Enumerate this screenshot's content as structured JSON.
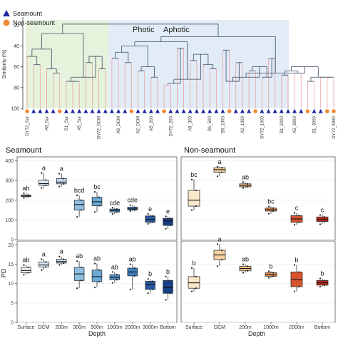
{
  "colors": {
    "seamount": "#1f2aa0",
    "nonseamount": "#f08a36",
    "photic_bg": "#e6f2dc",
    "aphotic_bg": "#e2ecf7",
    "tree_line": "#3b4a63",
    "leaf_line": "#e9a0a0",
    "seamount_fills": [
      "#eef5fb",
      "#dbe9f6",
      "#c2daef",
      "#8fbfe3",
      "#6aaad8",
      "#4f91c9",
      "#3c7cbd",
      "#2458a0",
      "#173f86"
    ],
    "nonseamount_fills": [
      "#fbe7c9",
      "#f7d3a1",
      "#f3c08a",
      "#e98c4b",
      "#d8542d",
      "#bb2b1f"
    ]
  },
  "chart_data": [
    {
      "type": "dendrogram",
      "legend": [
        "Seamount",
        "Non-seamount"
      ],
      "legend_position": "top-left",
      "regions": [
        "Photic",
        "Aphotic"
      ],
      "ylabel": "Similarity (%)",
      "yticks": [
        20,
        40,
        60,
        80,
        100
      ],
      "ylim": [
        100,
        15
      ],
      "leaf_labels": [
        "DY72_Sur",
        "A8_Sur",
        "B1_Sur",
        "A5_Sur",
        "DY72_DCM",
        "A8_DCM",
        "A2_DCM",
        "A5_200",
        "DY72_200",
        "A8_300",
        "B1_500",
        "B8_1000",
        "A2_1000",
        "DY72_1000",
        "B1_2000",
        "A5_3000",
        "B1_3000",
        "DY72_4980"
      ],
      "leaf_types": [
        "Non-seamount",
        "Seamount",
        "Seamount",
        "Seamount",
        "Seamount",
        "Non-seamount",
        "Seamount",
        "Seamount",
        "Seamount",
        "Seamount",
        "Seamount",
        "Seamount",
        "Seamount",
        "Seamount",
        "Seamount",
        "Seamount",
        "Non-seamount",
        "Seamount",
        "Seamount",
        "Seamount",
        "Seamount",
        "Non-seamount",
        "Seamount",
        "Seamount",
        "Seamount",
        "Seamount",
        "Seamount",
        "Seamount",
        "Seamount",
        "Seamount",
        "Seamount",
        "Non-seamount",
        "Seamount",
        "Seamount",
        "Seamount",
        "Non-seamount",
        "Seamount",
        "Seamount",
        "Seamount",
        "Seamount",
        "Seamount",
        "Seamount",
        "Seamount",
        "Non-seamount",
        "Seamount",
        "Seamount",
        "Non-seamount",
        "Non-seamount"
      ],
      "merge_heights_photic": [
        28,
        43,
        50,
        58,
        62,
        66,
        70,
        74,
        74,
        50,
        56,
        62,
        66,
        70
      ],
      "merge_heights_aphotic": [
        31,
        36,
        40,
        46,
        52,
        56,
        60,
        64,
        70,
        72,
        76,
        78,
        42,
        48,
        54,
        58,
        62,
        66,
        70,
        74,
        44,
        56,
        60,
        64,
        70,
        52,
        60,
        64,
        68,
        66,
        70,
        74
      ],
      "photic_aphotic_merge": 19
    },
    {
      "type": "box",
      "title": "Seamount",
      "ylim": [
        0,
        420
      ],
      "yticks": [
        0,
        100,
        200,
        300,
        400
      ],
      "categories": [
        "Surface",
        "DCM",
        "200m",
        "300m",
        "500m",
        "1000m",
        "2000m",
        "3000m",
        "Bottom"
      ],
      "letters": [
        "ab",
        "a",
        "a",
        "bcd",
        "bc",
        "cde",
        "cde",
        "e",
        "e"
      ],
      "boxes": [
        {
          "min": 212,
          "q1": 218,
          "median": 222,
          "q3": 226,
          "max": 235
        },
        {
          "min": 262,
          "q1": 275,
          "median": 284,
          "q3": 302,
          "max": 338
        },
        {
          "min": 270,
          "q1": 283,
          "median": 292,
          "q3": 310,
          "max": 335
        },
        {
          "min": 115,
          "q1": 150,
          "median": 178,
          "q3": 200,
          "max": 225
        },
        {
          "min": 140,
          "q1": 172,
          "median": 192,
          "q3": 215,
          "max": 242
        },
        {
          "min": 130,
          "q1": 140,
          "median": 148,
          "q3": 155,
          "max": 162
        },
        {
          "min": 145,
          "q1": 150,
          "median": 156,
          "q3": 165,
          "max": 175
        },
        {
          "min": 80,
          "q1": 88,
          "median": 102,
          "q3": 120,
          "max": 130
        },
        {
          "min": 55,
          "q1": 72,
          "median": 95,
          "q3": 108,
          "max": 118
        }
      ]
    },
    {
      "type": "box",
      "title": "Non-seamount",
      "ylim": [
        0,
        420
      ],
      "yticks": [
        0,
        100,
        200,
        300,
        400
      ],
      "categories": [
        "Surface",
        "DCM",
        "200m",
        "1000m",
        "2000m",
        "Bottom"
      ],
      "letters": [
        "bc",
        "a",
        "ab",
        "bc",
        "c",
        "c"
      ],
      "boxes": [
        {
          "min": 150,
          "q1": 170,
          "median": 200,
          "q3": 250,
          "max": 305
        },
        {
          "min": 322,
          "q1": 342,
          "median": 355,
          "q3": 365,
          "max": 370
        },
        {
          "min": 262,
          "q1": 268,
          "median": 275,
          "q3": 283,
          "max": 292
        },
        {
          "min": 132,
          "q1": 145,
          "median": 152,
          "q3": 160,
          "max": 168
        },
        {
          "min": 75,
          "q1": 88,
          "median": 105,
          "q3": 122,
          "max": 135
        },
        {
          "min": 78,
          "q1": 92,
          "median": 102,
          "q3": 115,
          "max": 125
        }
      ]
    },
    {
      "type": "box",
      "ylabel": "PD",
      "ylim": [
        0,
        21
      ],
      "yticks": [
        0,
        5,
        10,
        15,
        20
      ],
      "categories": [
        "Surface",
        "DCM",
        "200m",
        "300m",
        "500m",
        "1000m",
        "2000m",
        "3000m",
        "Bottom"
      ],
      "letters": [
        "ab",
        "a",
        "a",
        "ab",
        "ab",
        "ab",
        "ab",
        "b",
        "b"
      ],
      "xlabel": "Depth",
      "boxes": [
        {
          "min": 12.3,
          "q1": 12.8,
          "median": 13.4,
          "q3": 14.2,
          "max": 14.8
        },
        {
          "min": 13.5,
          "q1": 14.3,
          "median": 14.8,
          "q3": 15.6,
          "max": 16.3
        },
        {
          "min": 14.8,
          "q1": 15.3,
          "median": 15.7,
          "q3": 16.3,
          "max": 17.0
        },
        {
          "min": 8.8,
          "q1": 10.8,
          "median": 12.5,
          "q3": 14.2,
          "max": 15.8
        },
        {
          "min": 9.0,
          "q1": 10.5,
          "median": 11.8,
          "q3": 13.5,
          "max": 15.2
        },
        {
          "min": 10.2,
          "q1": 11.0,
          "median": 11.6,
          "q3": 12.3,
          "max": 13.0
        },
        {
          "min": 8.5,
          "q1": 12.0,
          "median": 13.0,
          "q3": 14.0,
          "max": 15.0
        },
        {
          "min": 7.5,
          "q1": 8.5,
          "median": 9.8,
          "q3": 10.6,
          "max": 11.2
        },
        {
          "min": 5.8,
          "q1": 7.5,
          "median": 9.0,
          "q3": 10.8,
          "max": 11.8
        }
      ]
    },
    {
      "type": "box",
      "ylim": [
        0,
        21
      ],
      "yticks": [
        0,
        5,
        10,
        15,
        20
      ],
      "categories": [
        "Surface",
        "DCM",
        "200m",
        "1000m",
        "2000m",
        "Bottom"
      ],
      "letters": [
        "b",
        "a",
        "ab",
        "b",
        "b",
        "b"
      ],
      "xlabel": "Depth",
      "boxes": [
        {
          "min": 8.0,
          "q1": 8.8,
          "median": 10.2,
          "q3": 11.8,
          "max": 14.0
        },
        {
          "min": 14.5,
          "q1": 16.2,
          "median": 17.4,
          "q3": 18.6,
          "max": 20.2
        },
        {
          "min": 12.8,
          "q1": 13.3,
          "median": 13.9,
          "q3": 14.5,
          "max": 15.0
        },
        {
          "min": 11.5,
          "q1": 11.9,
          "median": 12.3,
          "q3": 12.8,
          "max": 13.2
        },
        {
          "min": 8.0,
          "q1": 9.2,
          "median": 11.0,
          "q3": 13.0,
          "max": 14.8
        },
        {
          "min": 9.2,
          "q1": 9.6,
          "median": 10.2,
          "q3": 10.8,
          "max": 11.3
        }
      ]
    }
  ]
}
